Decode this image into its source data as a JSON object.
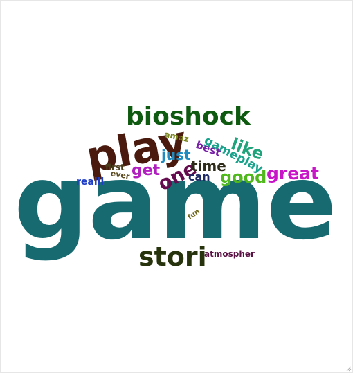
{
  "cloud": {
    "words": [
      {
        "text": "game",
        "color": "#176a70"
      },
      {
        "text": "play",
        "color": "#4a1a0e"
      },
      {
        "text": "bioshock",
        "color": "#0f5a11"
      },
      {
        "text": "stori",
        "color": "#26330c"
      },
      {
        "text": "like",
        "color": "#1fa37a"
      },
      {
        "text": "great",
        "color": "#c815c8"
      },
      {
        "text": "good",
        "color": "#50b81c"
      },
      {
        "text": "one",
        "color": "#650c4f"
      },
      {
        "text": "time",
        "color": "#2e2a1a"
      },
      {
        "text": "get",
        "color": "#b21fc0"
      },
      {
        "text": "gameplay",
        "color": "#1aa38c"
      },
      {
        "text": "just",
        "color": "#1f8bc0"
      },
      {
        "text": "can",
        "color": "#1d2a66"
      },
      {
        "text": "best",
        "color": "#7820a8"
      },
      {
        "text": "amaz",
        "color": "#7a8620"
      },
      {
        "text": "realli",
        "color": "#1f3ec7"
      },
      {
        "text": "first",
        "color": "#4a3d1a"
      },
      {
        "text": "ever",
        "color": "#5b4a20"
      },
      {
        "text": "fun",
        "color": "#706619"
      },
      {
        "text": "atmospher",
        "color": "#5a1245"
      }
    ]
  }
}
